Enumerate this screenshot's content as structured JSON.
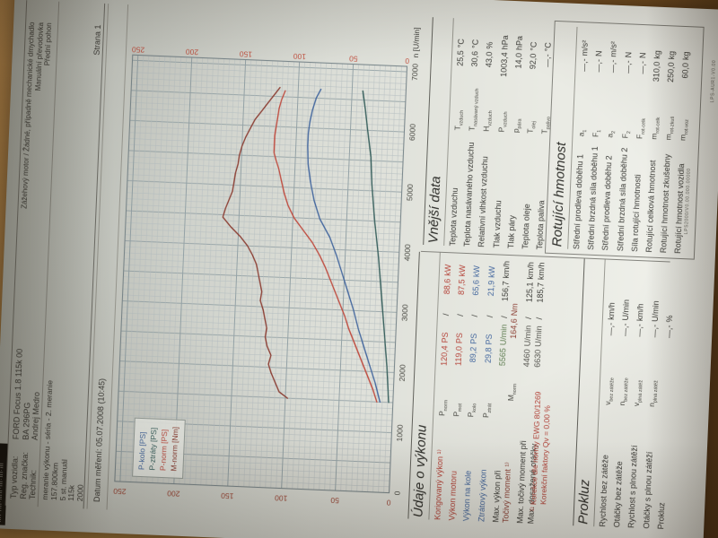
{
  "colors": {
    "red": "#b5443a",
    "blue": "#46699f",
    "maroon": "#8d4136",
    "green": "#5f7d52",
    "black": "#3c3c38",
    "gray": "#55554f",
    "axis_left": "#9c4434",
    "axis_right": "#c25140",
    "xtick": "#4a4a44",
    "grid_minor": "#b7c0c2",
    "grid_major": "#94a2a6",
    "plot_border": "#7c898d"
  },
  "sticker_text": "ıllı·ıılı·ıllıı·ılı·ııl·ıll",
  "header": {
    "fields": [
      {
        "label": "Typ vozidla:",
        "value": "FORD Focus 1.8 115k 00"
      },
      {
        "label": "Reg. značka:",
        "value": "BA 296PG"
      },
      {
        "label": "Technik:",
        "value": "Andrej Medro"
      }
    ],
    "engine_lines": [
      "Zážehový motor / Žádné, případně mechanické dmychadlo",
      "Manuální převodovka",
      "Přední pohon"
    ],
    "measurement_lines": [
      "meranie výkonu - séria - 2. meranie",
      "157.800km",
      "5 st. manuál",
      "115k",
      "2000"
    ],
    "page_label": "Strana 1",
    "date_line": "Datum měření: 05.07.2008 (10:45)"
  },
  "chart_data": {
    "type": "line",
    "xlabel": "n [U/min]",
    "xlim": [
      0,
      7000
    ],
    "ylim": [
      0,
      250
    ],
    "xticks": [
      0,
      1000,
      2000,
      3000,
      4000,
      5000,
      6000,
      7000
    ],
    "yticks": [
      0,
      50,
      100,
      150,
      200,
      250
    ],
    "grid": true,
    "legend_position": "top-left",
    "series": [
      {
        "name": "P-kolo [PS]",
        "color": "#46699f",
        "points": [
          [
            1500,
            12
          ],
          [
            1800,
            17
          ],
          [
            2100,
            23
          ],
          [
            2400,
            29
          ],
          [
            2700,
            35
          ],
          [
            3000,
            40
          ],
          [
            3300,
            46
          ],
          [
            3600,
            52
          ],
          [
            3900,
            58
          ],
          [
            4200,
            65
          ],
          [
            4500,
            75
          ],
          [
            4800,
            81
          ],
          [
            5100,
            85
          ],
          [
            5400,
            88
          ],
          [
            5700,
            89
          ],
          [
            5900,
            89
          ],
          [
            6100,
            88
          ],
          [
            6300,
            86
          ],
          [
            6500,
            83
          ],
          [
            6650,
            79
          ]
        ]
      },
      {
        "name": "P-ztráty [PS]",
        "color": "#39615e",
        "points": [
          [
            1500,
            4
          ],
          [
            2100,
            7
          ],
          [
            2700,
            11
          ],
          [
            3300,
            15
          ],
          [
            3900,
            19
          ],
          [
            4500,
            24
          ],
          [
            5100,
            28
          ],
          [
            5565,
            30
          ],
          [
            6000,
            34
          ],
          [
            6350,
            37
          ],
          [
            6650,
            40
          ]
        ]
      },
      {
        "name": "P-norm [PS]",
        "color": "#bf4e42",
        "points": [
          [
            1500,
            15
          ],
          [
            1700,
            19
          ],
          [
            1900,
            24
          ],
          [
            2100,
            29
          ],
          [
            2300,
            34
          ],
          [
            2500,
            39
          ],
          [
            2700,
            44
          ],
          [
            2900,
            48
          ],
          [
            3100,
            53
          ],
          [
            3300,
            58
          ],
          [
            3500,
            63
          ],
          [
            3700,
            68
          ],
          [
            3900,
            74
          ],
          [
            4100,
            81
          ],
          [
            4300,
            90
          ],
          [
            4500,
            99
          ],
          [
            4700,
            105
          ],
          [
            4900,
            109
          ],
          [
            5100,
            112
          ],
          [
            5300,
            115
          ],
          [
            5450,
            118
          ],
          [
            5565,
            120
          ],
          [
            5700,
            120
          ],
          [
            5850,
            120
          ],
          [
            6000,
            119
          ],
          [
            6150,
            118
          ],
          [
            6300,
            117
          ],
          [
            6450,
            115
          ],
          [
            6600,
            112
          ]
        ]
      },
      {
        "name": "M-norm [Nm]",
        "color": "#8d4136",
        "points": [
          [
            1500,
            98
          ],
          [
            1600,
            106
          ],
          [
            1750,
            110
          ],
          [
            1900,
            114
          ],
          [
            2050,
            117
          ],
          [
            2200,
            115
          ],
          [
            2350,
            119
          ],
          [
            2500,
            121
          ],
          [
            2650,
            120
          ],
          [
            2800,
            122
          ],
          [
            2950,
            124
          ],
          [
            3100,
            127
          ],
          [
            3250,
            126
          ],
          [
            3400,
            128
          ],
          [
            3550,
            130
          ],
          [
            3700,
            132
          ],
          [
            3850,
            136
          ],
          [
            4000,
            141
          ],
          [
            4150,
            148
          ],
          [
            4300,
            157
          ],
          [
            4460,
            165
          ],
          [
            4600,
            163
          ],
          [
            4750,
            160
          ],
          [
            4900,
            157
          ],
          [
            5050,
            156
          ],
          [
            5200,
            155
          ],
          [
            5350,
            153
          ],
          [
            5500,
            152
          ],
          [
            5650,
            150
          ],
          [
            5800,
            147
          ],
          [
            5950,
            143
          ],
          [
            6100,
            139
          ],
          [
            6250,
            133
          ],
          [
            6400,
            127
          ],
          [
            6550,
            121
          ],
          [
            6650,
            117
          ]
        ]
      }
    ]
  },
  "sections": {
    "udaje": {
      "title": "Údaje o výkonu",
      "rows": [
        {
          "l": "Korigovaný výkon ¹⁾",
          "sy": "P",
          "su": "norm",
          "v1": "120,4",
          "u1": "PS",
          "sep": "/",
          "v2": "88,6",
          "u2": "kW",
          "lc": "red",
          "c1": "red",
          "c2": "red"
        },
        {
          "l": "Výkon motoru",
          "sy": "P",
          "su": "mot",
          "v1": "119,0",
          "u1": "PS",
          "sep": "/",
          "v2": "87,5",
          "u2": "kW",
          "lc": "red",
          "c1": "red",
          "c2": "red"
        },
        {
          "l": "Výkon na kole",
          "sy": "P",
          "su": "kolo",
          "v1": "89,2",
          "u1": "PS",
          "sep": "/",
          "v2": "65,6",
          "u2": "kW",
          "lc": "blue",
          "c1": "blue",
          "c2": "blue"
        },
        {
          "l": "Ztrátový výkon",
          "sy": "P",
          "su": "ztrát",
          "v1": "29,8",
          "u1": "PS",
          "sep": "/",
          "v2": "21,9",
          "u2": "kW",
          "lc": "blue",
          "c1": "blue",
          "c2": "blue"
        },
        {
          "l": "Max. výkon při",
          "v1": "5565",
          "u1": "U/min",
          "sep": "/",
          "v2": "156,7",
          "u2": "km/h",
          "lc": "black",
          "c1": "green",
          "c2": "black"
        },
        {
          "l": "Točivý moment ¹⁾",
          "sy": "M",
          "su": "norm",
          "v1": "164,6",
          "u1": "Nm",
          "lc": "maroon",
          "c1": "maroon"
        },
        {
          "l": "Max. točivý moment při",
          "v1": "4460",
          "u1": "U/min",
          "sep": "/",
          "v2": "125,1",
          "u2": "km/h",
          "lc": "black",
          "c1": "gray",
          "c2": "black"
        },
        {
          "l": "Max. dosažené otáčky",
          "v1": "6630",
          "u1": "U/min",
          "sep": "/",
          "v2": "185,7",
          "u2": "km/h",
          "lc": "black",
          "c1": "gray",
          "c2": "black"
        }
      ],
      "footnotes": [
        "¹⁾ Korekce dle normy EWG 80/1269",
        "Korekční faktory  Qv =  0,00 %"
      ]
    },
    "vnejsi": {
      "title": "Vnější data",
      "rows": [
        {
          "l": "Teplota vzduchu",
          "sy": "T",
          "su": "vzduch",
          "v1": "25,5",
          "u1": "°C",
          "lc": "black",
          "c1": "black"
        },
        {
          "l": "Teplota nasávaného vzduchu",
          "sy": "T",
          "su": "nasávaný vzduch",
          "v1": "30,6",
          "u1": "°C",
          "lc": "black",
          "c1": "black"
        },
        {
          "l": "Relativní vlhkost vzduchu",
          "sy": "H",
          "su": "vzduch",
          "v1": "43,0",
          "u1": "%",
          "lc": "black",
          "c1": "black"
        },
        {
          "l": "Tlak vzduchu",
          "sy": "P",
          "su": "vzduch",
          "v1": "1003,4",
          "u1": "hPa",
          "lc": "black",
          "c1": "black"
        },
        {
          "l": "Tlak páry",
          "sy": "p",
          "su": "pára",
          "v1": "14,0",
          "u1": "hPa",
          "lc": "black",
          "c1": "black"
        },
        {
          "l": "Teplota oleje",
          "sy": "T",
          "su": "olej",
          "v1": "92,0",
          "u1": "°C",
          "lc": "black",
          "c1": "black"
        },
        {
          "l": "Teplota paliva",
          "sy": "T",
          "su": "palivo",
          "v1": "—,-",
          "u1": "°C",
          "lc": "black",
          "c1": "black"
        }
      ]
    },
    "rotujici": {
      "title": "Rotující hmotnost",
      "rows": [
        {
          "l": "Střední prodleva doběhu 1",
          "sy": "a",
          "su": "1",
          "v1": "—,-",
          "u1": "m/s²",
          "lc": "black",
          "c1": "black"
        },
        {
          "l": "Střední brzdná síla doběhu 1",
          "sy": "F",
          "su": "1",
          "v1": "—,-",
          "u1": "N",
          "lc": "black",
          "c1": "black"
        },
        {
          "l": "Střední prodleva doběhu 2",
          "sy": "a",
          "su": "2",
          "v1": "—,-",
          "u1": "m/s²",
          "lc": "black",
          "c1": "black"
        },
        {
          "l": "Střední brzdná síla doběhu 2",
          "sy": "F",
          "su": "2",
          "v1": "—,-",
          "u1": "N",
          "lc": "black",
          "c1": "black"
        },
        {
          "l": "Síla rotující hmotnosti",
          "sy": "F",
          "su": "rot-celk",
          "v1": "—,-",
          "u1": "N",
          "lc": "black",
          "c1": "black"
        },
        {
          "l": "Rotující celková hmotnost",
          "sy": "m",
          "su": "rot-celk",
          "v1": "310,0",
          "u1": "kg",
          "lc": "black",
          "c1": "black"
        },
        {
          "l": "Rotující hmotnost zkušebny",
          "sy": "m",
          "su": "rot-zkuš",
          "v1": "250,0",
          "u1": "kg",
          "lc": "black",
          "c1": "black"
        },
        {
          "l": "Rotující hmotnost vozidla",
          "sy": "m",
          "su": "rot-voz",
          "v1": "60,0",
          "u1": "kg",
          "lc": "black",
          "c1": "black"
        }
      ]
    },
    "prokluz": {
      "title": "Prokluz",
      "rows": [
        {
          "l": "Rychlost bez zátěže",
          "sy": "v",
          "su": "bez zátěže",
          "v1": "—,-",
          "u1": "km/h",
          "lc": "black",
          "c1": "black"
        },
        {
          "l": "Otáčky bez zátěže",
          "sy": "n",
          "su": "bez zátěže",
          "v1": "—,-",
          "u1": "U/min",
          "lc": "black",
          "c1": "black"
        },
        {
          "l": "Rychlost s plnou zátěží",
          "sy": "v",
          "su": "plná zátěž",
          "v1": "—,-",
          "u1": "km/h",
          "lc": "black",
          "c1": "black"
        },
        {
          "l": "Otáčky s plnou zátěží",
          "sy": "n",
          "su": "plná zátěž",
          "v1": "—,-",
          "u1": "U/min",
          "lc": "black",
          "c1": "black"
        },
        {
          "l": "Prokluz",
          "v1": "—,-",
          "u1": "%",
          "lc": "black",
          "c1": "black"
        }
      ]
    }
  },
  "footer": {
    "code_bottom": "LPS2000/V0.00.000.00000",
    "code_edge": "LPS-AUR1-V0.00"
  }
}
